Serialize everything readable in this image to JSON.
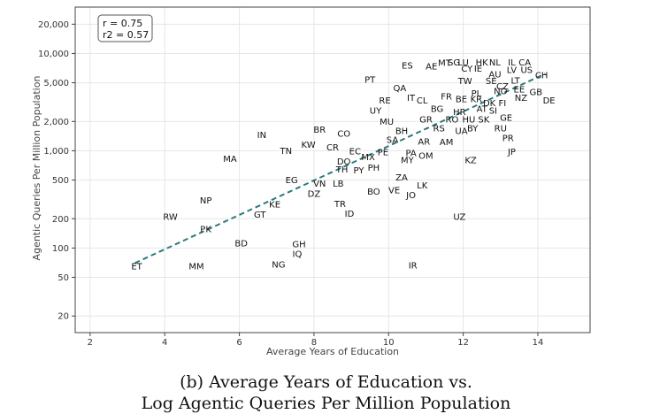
{
  "chart_data": {
    "type": "scatter",
    "xlabel": "Average Years of Education",
    "ylabel": "Agentic Queries Per Million Population",
    "xlim": [
      1.6,
      15.4
    ],
    "ylim": [
      13.5,
      30000
    ],
    "yscale": "log",
    "x_ticks": [
      2,
      4,
      6,
      8,
      10,
      12,
      14
    ],
    "y_ticks": [
      20,
      50,
      100,
      200,
      500,
      1000,
      2000,
      5000,
      10000,
      20000
    ],
    "y_tick_labels": [
      "20",
      "50",
      "100",
      "200",
      "500",
      "1,000",
      "2,000",
      "5,000",
      "10,000",
      "20,000"
    ],
    "grid": true,
    "stats": [
      "r = 0.75",
      "r2 = 0.57"
    ],
    "trendline": {
      "x": [
        3.2,
        14.2
      ],
      "y": [
        70,
        6200
      ],
      "style": "dashed",
      "color": "#2a7a7c"
    },
    "points": [
      {
        "code": "ET",
        "x": 3.25,
        "y": 65
      },
      {
        "code": "MM",
        "x": 4.85,
        "y": 65
      },
      {
        "code": "NG",
        "x": 7.05,
        "y": 68
      },
      {
        "code": "IQ",
        "x": 7.55,
        "y": 87
      },
      {
        "code": "GH",
        "x": 7.6,
        "y": 110
      },
      {
        "code": "BD",
        "x": 6.05,
        "y": 112
      },
      {
        "code": "RW",
        "x": 4.15,
        "y": 210
      },
      {
        "code": "PK",
        "x": 5.1,
        "y": 157
      },
      {
        "code": "GT",
        "x": 6.55,
        "y": 220
      },
      {
        "code": "KE",
        "x": 6.95,
        "y": 280
      },
      {
        "code": "NP",
        "x": 5.1,
        "y": 310
      },
      {
        "code": "TR",
        "x": 8.7,
        "y": 285
      },
      {
        "code": "ID",
        "x": 8.95,
        "y": 225
      },
      {
        "code": "DZ",
        "x": 8.0,
        "y": 360
      },
      {
        "code": "VN",
        "x": 8.15,
        "y": 460
      },
      {
        "code": "LB",
        "x": 8.65,
        "y": 460
      },
      {
        "code": "EG",
        "x": 7.4,
        "y": 500
      },
      {
        "code": "MA",
        "x": 5.75,
        "y": 830
      },
      {
        "code": "TN",
        "x": 7.25,
        "y": 1000
      },
      {
        "code": "IN",
        "x": 6.6,
        "y": 1450
      },
      {
        "code": "KW",
        "x": 7.85,
        "y": 1150
      },
      {
        "code": "BR",
        "x": 8.15,
        "y": 1650
      },
      {
        "code": "CO",
        "x": 8.8,
        "y": 1500
      },
      {
        "code": "CR",
        "x": 8.5,
        "y": 1080
      },
      {
        "code": "EC",
        "x": 9.1,
        "y": 990
      },
      {
        "code": "DO",
        "x": 8.8,
        "y": 780
      },
      {
        "code": "TH",
        "x": 8.75,
        "y": 640
      },
      {
        "code": "PY",
        "x": 9.2,
        "y": 630
      },
      {
        "code": "MX",
        "x": 9.45,
        "y": 860
      },
      {
        "code": "PH",
        "x": 9.6,
        "y": 670
      },
      {
        "code": "PE",
        "x": 9.85,
        "y": 970
      },
      {
        "code": "BO",
        "x": 9.6,
        "y": 380
      },
      {
        "code": "VE",
        "x": 10.15,
        "y": 395
      },
      {
        "code": "JO",
        "x": 10.6,
        "y": 350
      },
      {
        "code": "ZA",
        "x": 10.35,
        "y": 530
      },
      {
        "code": "LK",
        "x": 10.9,
        "y": 440
      },
      {
        "code": "MY",
        "x": 10.5,
        "y": 800
      },
      {
        "code": "PA",
        "x": 10.6,
        "y": 950
      },
      {
        "code": "OM",
        "x": 11.0,
        "y": 890
      },
      {
        "code": "SA",
        "x": 10.1,
        "y": 1300
      },
      {
        "code": "BH",
        "x": 10.35,
        "y": 1600
      },
      {
        "code": "AR",
        "x": 10.95,
        "y": 1250
      },
      {
        "code": "AM",
        "x": 11.55,
        "y": 1230
      },
      {
        "code": "MU",
        "x": 9.95,
        "y": 2000
      },
      {
        "code": "UY",
        "x": 9.65,
        "y": 2600
      },
      {
        "code": "RE",
        "x": 9.9,
        "y": 3300
      },
      {
        "code": "QA",
        "x": 10.3,
        "y": 4400
      },
      {
        "code": "PT",
        "x": 9.5,
        "y": 5400
      },
      {
        "code": "ES",
        "x": 10.5,
        "y": 7500
      },
      {
        "code": "IT",
        "x": 10.6,
        "y": 3500
      },
      {
        "code": "CL",
        "x": 10.9,
        "y": 3300
      },
      {
        "code": "BG",
        "x": 11.3,
        "y": 2700
      },
      {
        "code": "GR",
        "x": 11.0,
        "y": 2100
      },
      {
        "code": "RS",
        "x": 11.35,
        "y": 1700
      },
      {
        "code": "RO",
        "x": 11.7,
        "y": 2100
      },
      {
        "code": "UA",
        "x": 11.95,
        "y": 1600
      },
      {
        "code": "FR",
        "x": 11.55,
        "y": 3600
      },
      {
        "code": "HR",
        "x": 11.9,
        "y": 2500
      },
      {
        "code": "BE",
        "x": 11.95,
        "y": 3400
      },
      {
        "code": "TW",
        "x": 12.05,
        "y": 5200
      },
      {
        "code": "AE",
        "x": 11.15,
        "y": 7400
      },
      {
        "code": "MT",
        "x": 11.5,
        "y": 8000
      },
      {
        "code": "SG",
        "x": 11.75,
        "y": 8100
      },
      {
        "code": "LU",
        "x": 12.0,
        "y": 8100
      },
      {
        "code": "CY",
        "x": 12.1,
        "y": 7000
      },
      {
        "code": "IE",
        "x": 12.4,
        "y": 7000
      },
      {
        "code": "HK",
        "x": 12.5,
        "y": 8100
      },
      {
        "code": "NL",
        "x": 12.85,
        "y": 8100
      },
      {
        "code": "IL",
        "x": 13.3,
        "y": 8100
      },
      {
        "code": "CA",
        "x": 13.65,
        "y": 8100
      },
      {
        "code": "LV",
        "x": 13.3,
        "y": 6800
      },
      {
        "code": "US",
        "x": 13.7,
        "y": 6800
      },
      {
        "code": "CH",
        "x": 14.1,
        "y": 6000
      },
      {
        "code": "AU",
        "x": 12.85,
        "y": 6100
      },
      {
        "code": "SE",
        "x": 12.75,
        "y": 5200
      },
      {
        "code": "LT",
        "x": 13.4,
        "y": 5300
      },
      {
        "code": "CZ",
        "x": 13.05,
        "y": 4600
      },
      {
        "code": "EE",
        "x": 13.5,
        "y": 4300
      },
      {
        "code": "NO",
        "x": 13.0,
        "y": 4100
      },
      {
        "code": "GB",
        "x": 13.95,
        "y": 4000
      },
      {
        "code": "PL",
        "x": 12.35,
        "y": 3900
      },
      {
        "code": "KR",
        "x": 12.35,
        "y": 3400
      },
      {
        "code": "DK",
        "x": 12.7,
        "y": 3100
      },
      {
        "code": "FI",
        "x": 13.05,
        "y": 3100
      },
      {
        "code": "NZ",
        "x": 13.55,
        "y": 3500
      },
      {
        "code": "DE",
        "x": 14.3,
        "y": 3300
      },
      {
        "code": "AT",
        "x": 12.5,
        "y": 2700
      },
      {
        "code": "SI",
        "x": 12.8,
        "y": 2600
      },
      {
        "code": "HU",
        "x": 12.15,
        "y": 2100
      },
      {
        "code": "SK",
        "x": 12.55,
        "y": 2100
      },
      {
        "code": "GE",
        "x": 13.15,
        "y": 2200
      },
      {
        "code": "BY",
        "x": 12.25,
        "y": 1700
      },
      {
        "code": "RU",
        "x": 13.0,
        "y": 1700
      },
      {
        "code": "PR",
        "x": 13.2,
        "y": 1350
      },
      {
        "code": "JP",
        "x": 13.3,
        "y": 980
      },
      {
        "code": "KZ",
        "x": 12.2,
        "y": 800
      },
      {
        "code": "UZ",
        "x": 11.9,
        "y": 210
      },
      {
        "code": "IR",
        "x": 10.65,
        "y": 66
      }
    ]
  },
  "caption": {
    "line1": "(b) Average Years of Education vs.",
    "line2": "Log Agentic Queries Per Million Population"
  }
}
